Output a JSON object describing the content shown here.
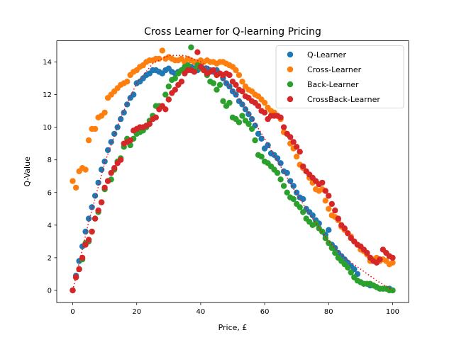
{
  "chart_data": {
    "type": "scatter",
    "title": "Cross Learner for Q-learning Pricing",
    "xlabel": "Price, £",
    "ylabel": "Q-Value",
    "xlim": [
      -5,
      105
    ],
    "ylim": [
      -0.75,
      15.3
    ],
    "xticks": [
      0,
      20,
      40,
      60,
      80,
      100
    ],
    "yticks": [
      0,
      2,
      4,
      6,
      8,
      10,
      12,
      14
    ],
    "grid": false,
    "legend_position": "top-right",
    "series": [
      {
        "name": "Q-Learner",
        "color": "#1f77b4",
        "x": [
          0,
          1,
          2,
          3,
          4,
          5,
          6,
          7,
          8,
          9,
          10,
          11,
          12,
          13,
          14,
          15,
          16,
          17,
          18,
          19,
          20,
          21,
          22,
          23,
          24,
          25,
          26,
          27,
          28,
          29,
          30,
          31,
          32,
          33,
          34,
          35,
          36,
          37,
          38,
          39,
          40,
          41,
          42,
          43,
          44,
          45,
          46,
          47,
          48,
          49,
          50,
          51,
          52,
          53,
          54,
          55,
          56,
          57,
          58,
          59,
          60,
          61,
          62,
          63,
          64,
          65,
          66,
          67,
          68,
          69,
          70,
          71,
          72,
          73,
          74,
          75,
          76,
          77,
          78,
          79,
          80,
          81,
          82,
          83,
          84,
          85,
          86,
          87,
          88,
          89,
          90,
          91,
          92,
          93,
          94,
          95,
          96,
          97,
          98,
          99,
          100
        ],
        "y": [
          0,
          0.9,
          1.8,
          2.7,
          3.6,
          4.4,
          5.1,
          5.8,
          6.6,
          7.4,
          7.9,
          8.6,
          9.1,
          9.6,
          10.0,
          10.5,
          10.9,
          11.4,
          11.8,
          12.0,
          12.7,
          12.8,
          13.0,
          13.2,
          13.3,
          13.5,
          13.5,
          13.4,
          13.3,
          13.5,
          13.6,
          13.4,
          13.3,
          13.4,
          13.5,
          13.6,
          13.6,
          13.7,
          13.6,
          13.5,
          13.8,
          13.6,
          13.6,
          13.5,
          13.4,
          13.5,
          13.3,
          13.0,
          12.7,
          12.5,
          12.2,
          12.0,
          11.6,
          11.4,
          11.1,
          10.8,
          10.5,
          10.1,
          9.6,
          9.3,
          8.7,
          8.9,
          8.4,
          8.3,
          8.1,
          7.8,
          7.3,
          7.2,
          6.7,
          6.4,
          6.0,
          5.7,
          5.6,
          5.0,
          4.8,
          4.6,
          4.3,
          4.1,
          3.6,
          3.4,
          3.7,
          2.8,
          2.6,
          2.3,
          2.1,
          1.9,
          1.7,
          1.5,
          1.3,
          1.0,
          0.5,
          0.4,
          0.4,
          0.3,
          0.3,
          0.2,
          0.1,
          0.1,
          0.1,
          0.1,
          0
        ]
      },
      {
        "name": "Cross-Learner",
        "color": "#ff7f0e",
        "x": [
          0,
          1,
          2,
          3,
          4,
          5,
          6,
          7,
          8,
          9,
          10,
          11,
          12,
          13,
          14,
          15,
          16,
          17,
          18,
          19,
          20,
          21,
          22,
          23,
          24,
          25,
          26,
          27,
          28,
          29,
          30,
          31,
          32,
          33,
          34,
          35,
          36,
          37,
          38,
          39,
          40,
          41,
          42,
          43,
          44,
          45,
          46,
          47,
          48,
          49,
          50,
          51,
          52,
          53,
          54,
          55,
          56,
          57,
          58,
          59,
          60,
          61,
          62,
          63,
          64,
          65,
          66,
          67,
          68,
          69,
          70,
          71,
          72,
          73,
          74,
          75,
          76,
          77,
          78,
          79,
          80,
          81,
          82,
          83,
          84,
          85,
          86,
          87,
          88,
          89,
          90,
          91,
          92,
          93,
          94,
          95,
          96,
          97,
          98,
          99,
          100
        ],
        "y": [
          6.7,
          6.3,
          7.3,
          7.5,
          7.4,
          9.2,
          9.9,
          9.9,
          10.6,
          10.7,
          10.9,
          11.8,
          12.0,
          12.2,
          12.4,
          12.6,
          12.7,
          12.8,
          13.2,
          13.4,
          13.5,
          13.7,
          13.8,
          14.0,
          14.1,
          14.1,
          14.2,
          14.2,
          14.7,
          14.2,
          14.3,
          14.2,
          14.1,
          14.1,
          14.2,
          14.0,
          14.2,
          14.1,
          14.0,
          14.0,
          14.1,
          14.0,
          14.1,
          14.0,
          14.0,
          13.9,
          14.0,
          14.0,
          13.9,
          13.8,
          13.7,
          13.5,
          13.2,
          12.8,
          12.5,
          12.3,
          12.2,
          12.0,
          11.9,
          11.7,
          11.5,
          11.2,
          11.0,
          10.9,
          10.7,
          10.5,
          9.7,
          9.6,
          9.0,
          8.7,
          8.2,
          7.7,
          7.5,
          7.3,
          6.9,
          6.6,
          6.2,
          6.1,
          6.2,
          5.5,
          5.0,
          4.6,
          4.5,
          4.3,
          3.9,
          3.7,
          3.5,
          3.3,
          3.0,
          2.8,
          2.5,
          2.4,
          2.2,
          1.8,
          1.9,
          2.0,
          1.8,
          1.9,
          1.8,
          1.6,
          1.7
        ]
      },
      {
        "name": "Back-Learner",
        "color": "#2ca02c",
        "x": [
          0,
          1,
          2,
          3,
          4,
          5,
          6,
          7,
          8,
          9,
          10,
          11,
          12,
          13,
          14,
          15,
          16,
          17,
          18,
          19,
          20,
          21,
          22,
          23,
          24,
          25,
          26,
          27,
          28,
          29,
          30,
          31,
          32,
          33,
          34,
          35,
          36,
          37,
          38,
          39,
          40,
          41,
          42,
          43,
          44,
          45,
          46,
          47,
          48,
          49,
          50,
          51,
          52,
          53,
          54,
          55,
          56,
          57,
          58,
          59,
          60,
          61,
          62,
          63,
          64,
          65,
          66,
          67,
          68,
          69,
          70,
          71,
          72,
          73,
          74,
          75,
          76,
          77,
          78,
          79,
          80,
          81,
          82,
          83,
          84,
          85,
          86,
          87,
          88,
          89,
          90,
          91,
          92,
          93,
          94,
          95,
          96,
          97,
          98,
          99,
          100
        ],
        "y": [
          0,
          0.8,
          1.3,
          1.9,
          2.9,
          3.0,
          3.6,
          4.4,
          4.8,
          5.4,
          6.2,
          6.7,
          6.8,
          7.4,
          7.9,
          8.1,
          8.8,
          9.3,
          8.9,
          9.3,
          9.6,
          9.7,
          9.8,
          10.0,
          10.4,
          10.7,
          11.3,
          11.3,
          11.3,
          12.0,
          12.5,
          12.9,
          13.0,
          13.3,
          13.5,
          13.7,
          13.8,
          14.9,
          13.5,
          13.8,
          13.6,
          13.5,
          13.2,
          12.8,
          12.7,
          12.3,
          12.6,
          11.6,
          11.3,
          11.5,
          10.6,
          10.5,
          10.3,
          10.7,
          10.4,
          10.2,
          9.9,
          9.2,
          8.3,
          8.2,
          7.9,
          7.8,
          7.6,
          7.4,
          7.2,
          6.8,
          6.4,
          6.0,
          5.7,
          5.6,
          5.3,
          5.1,
          4.8,
          4.4,
          4.2,
          4.0,
          4.1,
          3.8,
          3.6,
          3.2,
          2.9,
          2.6,
          2.3,
          2.0,
          1.8,
          1.6,
          1.4,
          1.1,
          0.8,
          0.6,
          0.5,
          0.4,
          0.4,
          0.4,
          0.3,
          0.2,
          0.1,
          0.1,
          0.1,
          0,
          0
        ]
      },
      {
        "name": "CrossBack-Learner",
        "color": "#d62728",
        "x": [
          0,
          1,
          2,
          3,
          4,
          5,
          6,
          7,
          8,
          9,
          10,
          11,
          12,
          13,
          14,
          15,
          16,
          17,
          18,
          19,
          20,
          21,
          22,
          23,
          24,
          25,
          26,
          27,
          28,
          29,
          30,
          31,
          32,
          33,
          34,
          35,
          36,
          37,
          38,
          39,
          40,
          41,
          42,
          43,
          44,
          45,
          46,
          47,
          48,
          49,
          50,
          51,
          52,
          53,
          54,
          55,
          56,
          57,
          58,
          59,
          60,
          61,
          62,
          63,
          64,
          65,
          66,
          67,
          68,
          69,
          70,
          71,
          72,
          73,
          74,
          75,
          76,
          77,
          78,
          79,
          80,
          81,
          82,
          83,
          84,
          85,
          86,
          87,
          88,
          89,
          90,
          91,
          92,
          93,
          94,
          95,
          96,
          97,
          98,
          99,
          100
        ],
        "y": [
          0,
          0.8,
          1.3,
          2.0,
          2.8,
          3.1,
          3.6,
          4.4,
          4.9,
          5.4,
          6.3,
          6.7,
          7.2,
          7.5,
          7.8,
          8.0,
          9.0,
          9.1,
          9.2,
          9.8,
          9.9,
          10.0,
          10.0,
          10.1,
          10.2,
          10.5,
          10.6,
          11.1,
          11.3,
          11.1,
          11.7,
          12.1,
          12.3,
          12.6,
          12.8,
          13.3,
          13.5,
          13.5,
          13.4,
          14.6,
          13.7,
          13.5,
          13.3,
          13.4,
          13.5,
          13.2,
          13.3,
          13.2,
          13.3,
          13.2,
          12.8,
          12.6,
          12.3,
          12.2,
          11.9,
          11.8,
          11.6,
          11.5,
          11.3,
          11.0,
          10.9,
          10.5,
          10.7,
          10.7,
          10.7,
          10.6,
          10.0,
          9.6,
          9.4,
          9.1,
          8.8,
          8.5,
          7.6,
          7.3,
          7.1,
          6.9,
          6.7,
          6.5,
          6.6,
          6.1,
          5.8,
          5.3,
          4.9,
          4.4,
          4.0,
          3.8,
          3.5,
          3.2,
          3.0,
          2.8,
          2.7,
          2.5,
          2.3,
          2.0,
          1.8,
          1.7,
          1.9,
          2.5,
          2.3,
          2.1,
          2.0
        ]
      }
    ],
    "reference_curve": {
      "style": "dotted",
      "color": "#ff0000",
      "x": [
        0,
        5,
        10,
        15,
        20,
        25,
        30,
        35,
        40,
        45,
        50,
        55,
        60,
        65,
        70,
        75,
        80,
        85,
        90,
        95,
        100
      ],
      "y": [
        0,
        4.2,
        7.8,
        10.6,
        12.7,
        13.9,
        14.4,
        14.4,
        14.0,
        13.3,
        12.3,
        10.9,
        9.3,
        7.6,
        5.9,
        4.4,
        3.0,
        2.0,
        1.3,
        0.6,
        0
      ]
    }
  }
}
